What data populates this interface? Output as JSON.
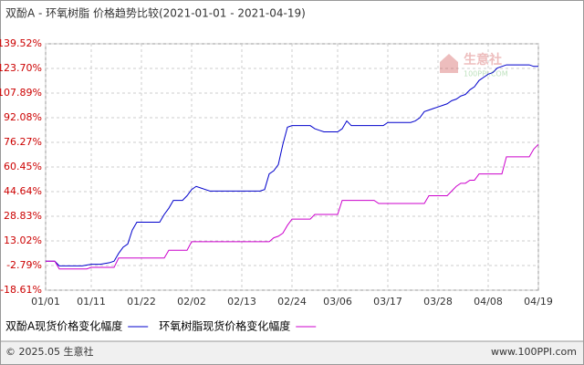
{
  "chart_data": {
    "type": "line",
    "title": "双酚A - 环氧树脂 价格趋势比较(2021-01-01 - 2021-04-19)",
    "categories": [
      "01/01",
      null,
      null,
      null,
      null,
      null,
      null,
      null,
      null,
      null,
      "01/11",
      null,
      null,
      null,
      null,
      null,
      null,
      null,
      null,
      null,
      null,
      "01/22",
      null,
      null,
      null,
      null,
      null,
      null,
      null,
      null,
      null,
      null,
      "02/02",
      null,
      null,
      null,
      null,
      null,
      null,
      null,
      null,
      null,
      null,
      "02/13",
      null,
      null,
      null,
      null,
      null,
      null,
      null,
      null,
      null,
      null,
      "02/24",
      null,
      null,
      null,
      null,
      null,
      null,
      null,
      null,
      null,
      "03/06",
      null,
      null,
      null,
      null,
      null,
      null,
      null,
      null,
      null,
      null,
      "03/17",
      null,
      null,
      null,
      null,
      null,
      null,
      null,
      null,
      null,
      null,
      "03/28",
      null,
      null,
      null,
      null,
      null,
      null,
      null,
      null,
      null,
      null,
      "04/08",
      null,
      null,
      null,
      null,
      null,
      null,
      null,
      null,
      null,
      null,
      "04/19"
    ],
    "series": [
      {
        "name": "双酚A现货价格变化幅度",
        "color": "#0000cc",
        "values": [
          0,
          0,
          0,
          -3,
          -3,
          -3,
          -3,
          -3,
          -3,
          -2.5,
          -2,
          -2,
          -2,
          -1.5,
          -1,
          0,
          5,
          9,
          11,
          20,
          25,
          25,
          25,
          25,
          25,
          25,
          30,
          34,
          39,
          39,
          39,
          42,
          46,
          48,
          47,
          46,
          45,
          45,
          45,
          45,
          45,
          45,
          45,
          45,
          45,
          45,
          45,
          45,
          46,
          56,
          58,
          62,
          75,
          86,
          87,
          87,
          87,
          87,
          87,
          85,
          84,
          83,
          83,
          83,
          83,
          85,
          90,
          87,
          87,
          87,
          87,
          87,
          87,
          87,
          87,
          89,
          89,
          89,
          89,
          89,
          89,
          90,
          92,
          96,
          97,
          98,
          99,
          100,
          101,
          103,
          104,
          106,
          107,
          110,
          112,
          116,
          118,
          120,
          121,
          124,
          125,
          126,
          126,
          126,
          126,
          126,
          126,
          125,
          125
        ]
      },
      {
        "name": "环氧树脂现货价格变化幅度",
        "color": "#cc00cc",
        "values": [
          0,
          0,
          0,
          -5,
          -5,
          -5,
          -5,
          -5,
          -5,
          -5,
          -4,
          -4,
          -4,
          -4,
          -4,
          -4,
          2,
          2,
          2,
          2,
          2,
          2,
          2,
          2,
          2,
          2,
          2,
          7,
          7,
          7,
          7,
          7,
          12.5,
          12.5,
          12.5,
          12.5,
          12.5,
          12.5,
          12.5,
          12.5,
          12.5,
          12.5,
          12.5,
          12.5,
          12.5,
          12.5,
          12.5,
          12.5,
          12.5,
          12.5,
          15,
          16,
          18,
          23,
          27,
          27,
          27,
          27,
          27,
          30,
          30,
          30,
          30,
          30,
          30,
          39,
          39,
          39,
          39,
          39,
          39,
          39,
          39,
          37,
          37,
          37,
          37,
          37,
          37,
          37,
          37,
          37,
          37,
          37,
          42,
          42,
          42,
          42,
          42,
          45,
          48,
          50,
          50,
          52,
          52,
          56,
          56,
          56,
          56,
          56,
          56,
          67,
          67,
          67,
          67,
          67,
          67,
          72,
          75
        ]
      }
    ],
    "ylim": [
      -18.61,
      139.52
    ],
    "yticks": [
      {
        "value": -18.61,
        "label": "-18.61%"
      },
      {
        "value": -2.79,
        "label": "-2.79%"
      },
      {
        "value": 13.02,
        "label": "13.02%"
      },
      {
        "value": 28.83,
        "label": "28.83%"
      },
      {
        "value": 44.64,
        "label": "44.64%"
      },
      {
        "value": 60.45,
        "label": "60.45%"
      },
      {
        "value": 76.27,
        "label": "76.27%"
      },
      {
        "value": 92.08,
        "label": "92.08%"
      },
      {
        "value": 107.89,
        "label": "107.89%"
      },
      {
        "value": 123.7,
        "label": "123.70%"
      },
      {
        "value": 139.52,
        "label": "139.52%"
      }
    ],
    "grid": true
  },
  "watermark": {
    "text": "生意社",
    "subtext": "100PPI.COM"
  },
  "footer": {
    "left": "© 2025.05 生意社",
    "right": "www.100PPI.com"
  }
}
